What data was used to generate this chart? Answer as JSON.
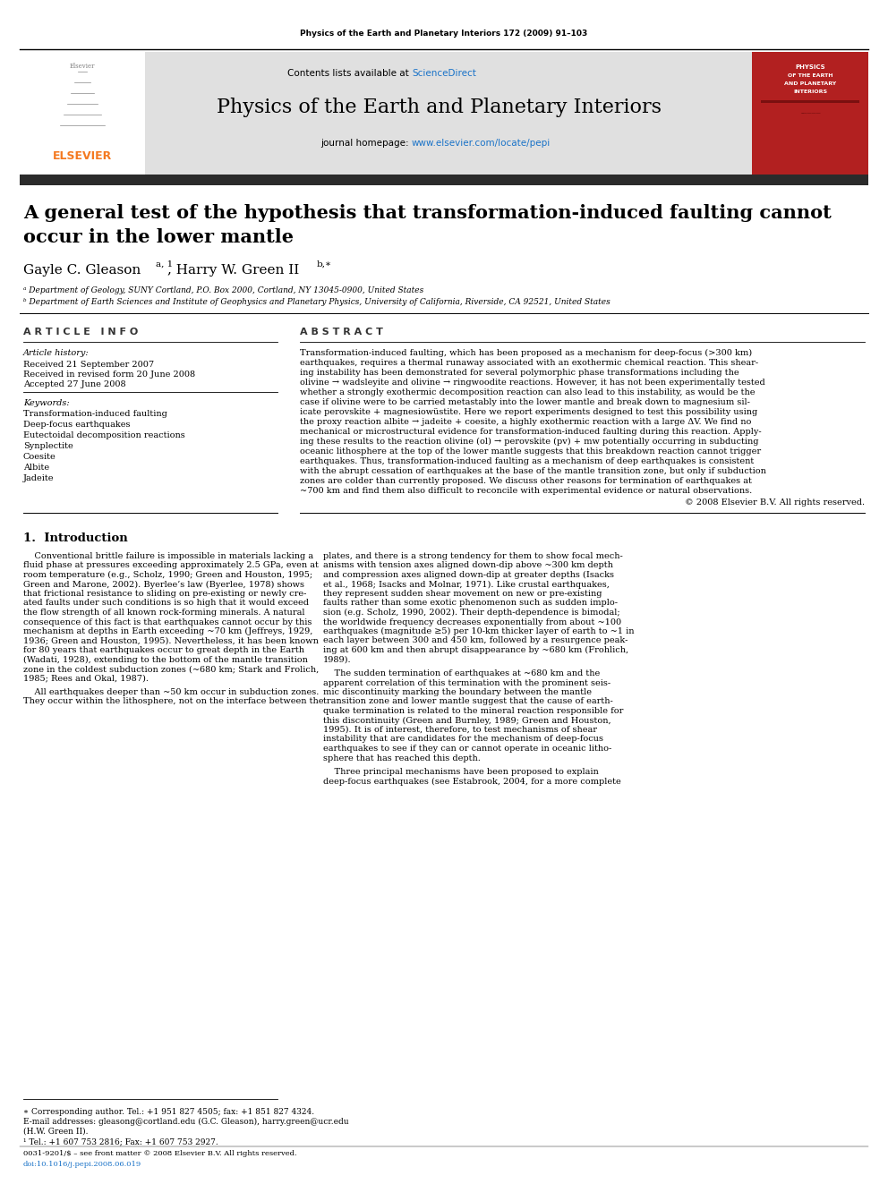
{
  "page_width": 9.92,
  "page_height": 13.23,
  "dpi": 100,
  "background_color": "#ffffff",
  "journal_citation": "Physics of the Earth and Planetary Interiors 172 (2009) 91–103",
  "header_bg": "#e0e0e0",
  "contents_text": "Contents lists available at ",
  "sciencedirect_text": "ScienceDirect",
  "sciencedirect_color": "#1a73c8",
  "journal_title": "Physics of the Earth and Planetary Interiors",
  "journal_homepage_prefix": "journal homepage: ",
  "journal_homepage_url": "www.elsevier.com/locate/pepi",
  "journal_homepage_color": "#1a73c8",
  "dark_bar_color": "#2b2b2b",
  "elsevier_color": "#f47920",
  "red_cover_bg": "#b22020",
  "article_title_line1": "A general test of the hypothesis that transformation-induced faulting cannot",
  "article_title_line2": "occur in the lower mantle",
  "authors_part1": "Gayle C. Gleason",
  "authors_super1": "a, 1",
  "authors_part2": ", Harry W. Green II",
  "authors_super2": "b,∗",
  "affil_a": "ᵃ Department of Geology, SUNY Cortland, P.O. Box 2000, Cortland, NY 13045-0900, United States",
  "affil_b": "ᵇ Department of Earth Sciences and Institute of Geophysics and Planetary Physics, University of California, Riverside, CA 92521, United States",
  "article_info_title": "A R T I C L E   I N F O",
  "abstract_title": "A B S T R A C T",
  "article_history_title": "Article history:",
  "received1": "Received 21 September 2007",
  "received2": "Received in revised form 20 June 2008",
  "accepted": "Accepted 27 June 2008",
  "keywords_title": "Keywords:",
  "keywords": [
    "Transformation-induced faulting",
    "Deep-focus earthquakes",
    "Eutectoidal decomposition reactions",
    "Synplectite",
    "Coesite",
    "Albite",
    "Jadeite"
  ],
  "copyright": "© 2008 Elsevier B.V. All rights reserved.",
  "intro_title": "1.  Introduction",
  "footer_star": "∗ Corresponding author. Tel.: +1 951 827 4505; fax: +1 851 827 4324.",
  "footer_email": "E-mail addresses: gleasong@cortland.edu (G.C. Gleason), harry.green@ucr.edu",
  "footer_email2": "(H.W. Green II).",
  "footer_num": "¹ Tel.: +1 607 753 2816; Fax: +1 607 753 2927.",
  "footer_issn": "0031-9201/$ – see front matter © 2008 Elsevier B.V. All rights reserved.",
  "footer_doi": "doi:10.1016/j.pepi.2008.06.019",
  "link_color": "#1a73c8"
}
